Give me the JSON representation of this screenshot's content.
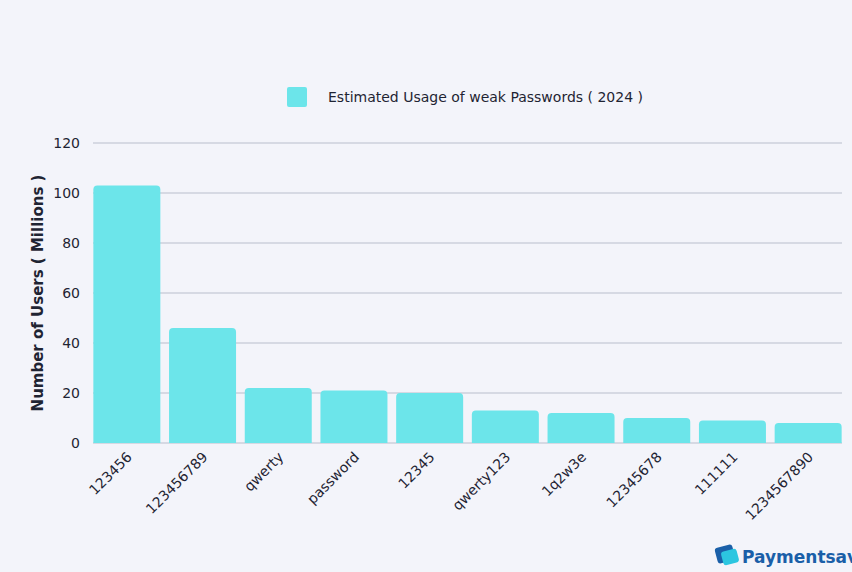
{
  "chart_data": {
    "type": "bar",
    "categories": [
      "123456",
      "123456789",
      "qwerty",
      "password",
      "12345",
      "qwerty123",
      "1q2w3e",
      "12345678",
      "111111",
      "1234567890"
    ],
    "series": [
      {
        "name": "Estimated Usage of weak Passwords ( 2024 )",
        "color": "#6ce5ea",
        "values": [
          103,
          46,
          22,
          21,
          20,
          13,
          12,
          10,
          9,
          8
        ]
      }
    ],
    "y_label": "Number of Users ( Millions )",
    "ylim": [
      0,
      120
    ],
    "yticks": [
      0,
      20,
      40,
      60,
      80,
      100,
      120
    ],
    "grid": true,
    "legend": "top",
    "annotations": [
      "Paymentsave"
    ]
  }
}
